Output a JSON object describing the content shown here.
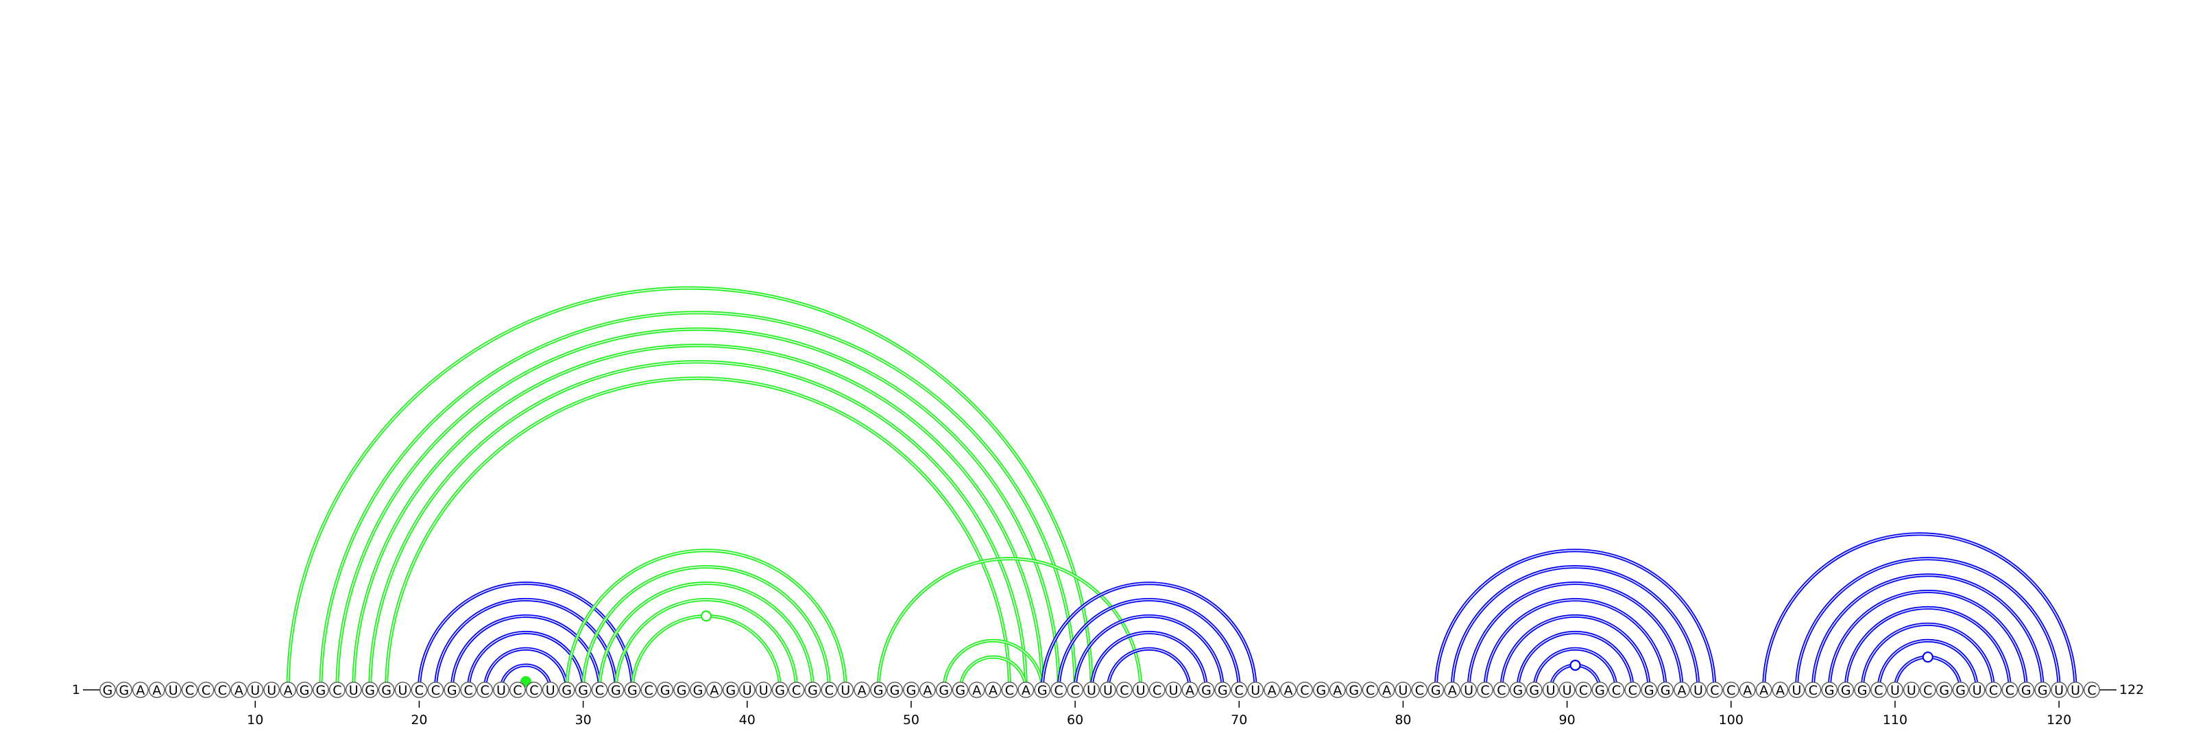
{
  "sequence": "GGAAUCCCAUUAGGCUGGUCCGCCUCCUGGCGGCGGGAGUUGCGCUAGGGAGGAACAGCCUUCUCUAGGCUAACGAGCAUCGAUCCGGUUCGCCGGAUCCAAAUCGGGCUUCGGUCCGGUUC",
  "start_label": "1",
  "end_label": "122",
  "ticks": [
    10,
    20,
    30,
    40,
    50,
    60,
    70,
    80,
    90,
    100,
    110,
    120
  ],
  "colors": {
    "blue": "#0000ee",
    "green": "#22ee22",
    "node_stroke": "#555555",
    "node_fill": "#ffffff",
    "text": "#000000"
  },
  "arc_groups": [
    {
      "color": "blue",
      "pairs": [
        [
          20,
          33
        ],
        [
          21,
          32
        ],
        [
          22,
          31
        ],
        [
          23,
          30
        ],
        [
          24,
          29
        ],
        [
          25,
          28
        ]
      ]
    },
    {
      "color": "green",
      "pairs": [
        [
          26,
          27
        ]
      ],
      "marker": "filled"
    },
    {
      "color": "green",
      "pairs": [
        [
          12,
          61
        ],
        [
          14,
          60
        ],
        [
          15,
          59
        ],
        [
          16,
          58
        ],
        [
          17,
          57
        ],
        [
          18,
          56
        ]
      ]
    },
    {
      "color": "green",
      "pairs": [
        [
          29,
          46
        ],
        [
          30,
          45
        ],
        [
          31,
          44
        ],
        [
          32,
          43
        ],
        [
          33,
          42
        ]
      ],
      "marker": "open"
    },
    {
      "color": "green",
      "pairs": [
        [
          48,
          64
        ],
        [
          52,
          58
        ],
        [
          53,
          57
        ]
      ]
    },
    {
      "color": "blue",
      "pairs": [
        [
          58,
          71
        ],
        [
          59,
          70
        ],
        [
          60,
          69
        ],
        [
          61,
          68
        ],
        [
          62,
          67
        ]
      ]
    },
    {
      "color": "blue",
      "pairs": [
        [
          82,
          99
        ],
        [
          83,
          98
        ],
        [
          84,
          97
        ],
        [
          85,
          96
        ],
        [
          86,
          95
        ],
        [
          87,
          94
        ],
        [
          88,
          93
        ],
        [
          89,
          92
        ]
      ],
      "marker": "open"
    },
    {
      "color": "blue",
      "pairs": [
        [
          102,
          121
        ],
        [
          104,
          120
        ],
        [
          105,
          119
        ],
        [
          106,
          118
        ],
        [
          107,
          117
        ],
        [
          108,
          116
        ],
        [
          109,
          115
        ],
        [
          110,
          114
        ]
      ],
      "marker": "open"
    }
  ]
}
